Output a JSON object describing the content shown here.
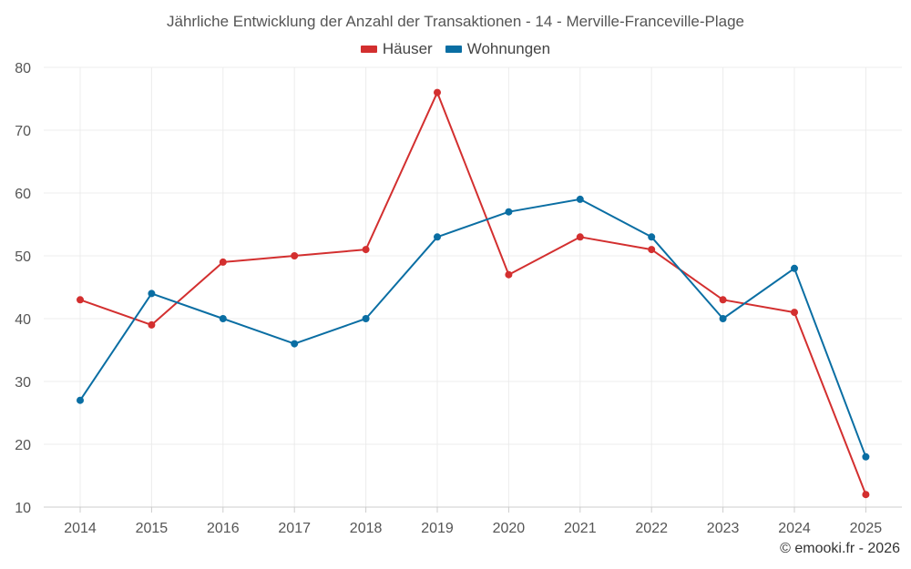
{
  "colors": {
    "houses": "#d32f2f",
    "apartments": "#0a6ea3",
    "grid": "#ececec",
    "axis": "#cccccc",
    "tick": "#555555"
  },
  "credit": "© emooki.fr - 2026",
  "chart_data": {
    "type": "line",
    "title": "Jährliche Entwicklung der Anzahl der Transaktionen - 14 - Merville-Franceville-Plage",
    "x": [
      "2014",
      "2015",
      "2016",
      "2017",
      "2018",
      "2019",
      "2020",
      "2021",
      "2022",
      "2023",
      "2024",
      "2025"
    ],
    "ylim": [
      10,
      80
    ],
    "yticks": [
      "10",
      "20",
      "30",
      "40",
      "50",
      "60",
      "70",
      "80"
    ],
    "xlabel": "",
    "ylabel": "",
    "grid": true,
    "legend_position": "top-center",
    "series": [
      {
        "name": "Häuser",
        "color_key": "houses",
        "values": [
          43,
          39,
          49,
          50,
          51,
          76,
          47,
          53,
          51,
          43,
          41,
          12
        ]
      },
      {
        "name": "Wohnungen",
        "color_key": "apartments",
        "values": [
          27,
          44,
          40,
          36,
          40,
          53,
          57,
          59,
          53,
          40,
          48,
          18
        ]
      }
    ]
  }
}
